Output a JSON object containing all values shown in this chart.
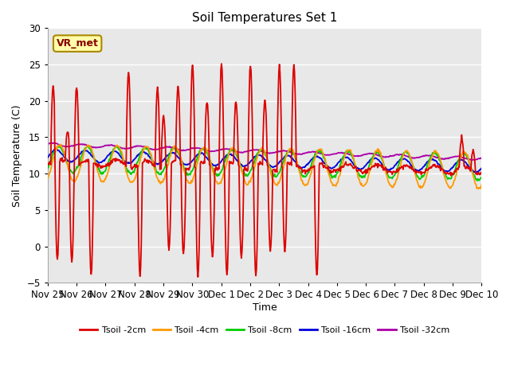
{
  "title": "Soil Temperatures Set 1",
  "xlabel": "Time",
  "ylabel": "Soil Temperature (C)",
  "ylim": [
    -5,
    30
  ],
  "xlim": [
    0,
    15
  ],
  "tick_labels": [
    "Nov 25",
    "Nov 26",
    "Nov 27",
    "Nov 28",
    "Nov 29",
    "Nov 30",
    "Dec 1",
    "Dec 2",
    "Dec 3",
    "Dec 4",
    "Dec 5",
    "Dec 6",
    "Dec 7",
    "Dec 8",
    "Dec 9",
    "Dec 10"
  ],
  "yticks": [
    -5,
    0,
    5,
    10,
    15,
    20,
    25,
    30
  ],
  "legend_labels": [
    "Tsoil -2cm",
    "Tsoil -4cm",
    "Tsoil -8cm",
    "Tsoil -16cm",
    "Tsoil -32cm"
  ],
  "colors": {
    "2cm": "#dd0000",
    "4cm": "#ff9900",
    "8cm": "#00cc00",
    "16cm": "#0000dd",
    "32cm": "#aa00aa"
  },
  "annotation_text": "VR_met",
  "annotation_bg": "#ffffaa",
  "annotation_border": "#aa8800",
  "plot_bg": "#e8e8e8",
  "grid_color": "#d0d0d0"
}
